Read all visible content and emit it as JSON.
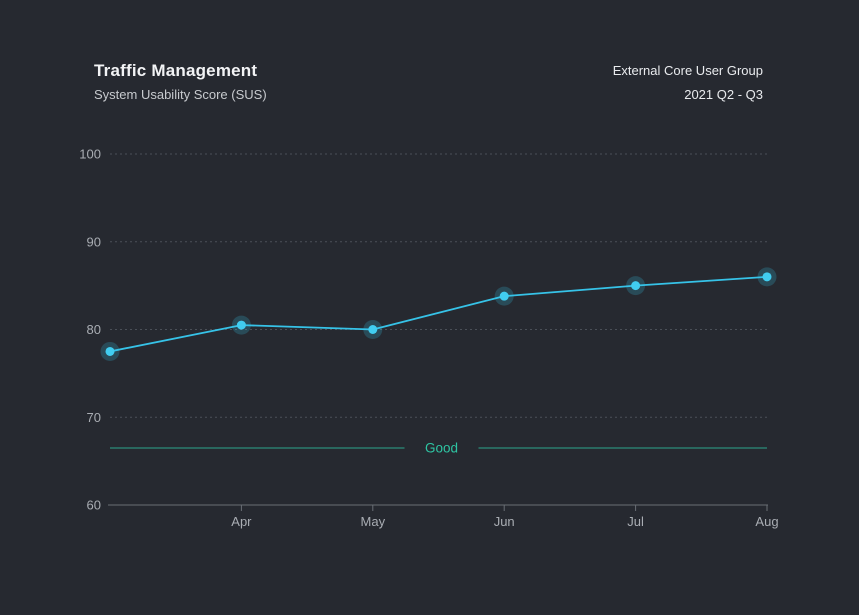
{
  "header": {
    "title": "Traffic Management",
    "subtitle": "System Usability Score (SUS)",
    "meta_primary": "External Core User Group",
    "meta_secondary": "2021 Q2 - Q3"
  },
  "chart_data": {
    "type": "line",
    "title": "Traffic Management",
    "subtitle": "System Usability Score (SUS)",
    "categories": [
      "",
      "Apr",
      "May",
      "Jun",
      "Jul",
      "Aug"
    ],
    "series": [
      {
        "name": "System Usability Score",
        "values": [
          77.5,
          80.5,
          80,
          83.8,
          85,
          86
        ]
      }
    ],
    "xlabel": "",
    "ylabel": "",
    "ylim": [
      60,
      100
    ],
    "yticks": [
      60,
      70,
      80,
      90,
      100
    ],
    "grid": "horizontal-dotted",
    "legend": "none",
    "reference_line": {
      "label": "Good",
      "value": 66.5
    }
  },
  "colors": {
    "background": "#262930",
    "line": "#36c3e8",
    "point": "#41cdf0",
    "point_halo": "rgba(54,195,232,0.22)",
    "reference": "#2ec5a3",
    "grid": "#4b5058",
    "axis": "#696e75",
    "tick_text": "#a9adb3",
    "title_text": "#f2f3f5",
    "subtitle_text": "#c7cace",
    "meta_text": "#e9ebee"
  }
}
